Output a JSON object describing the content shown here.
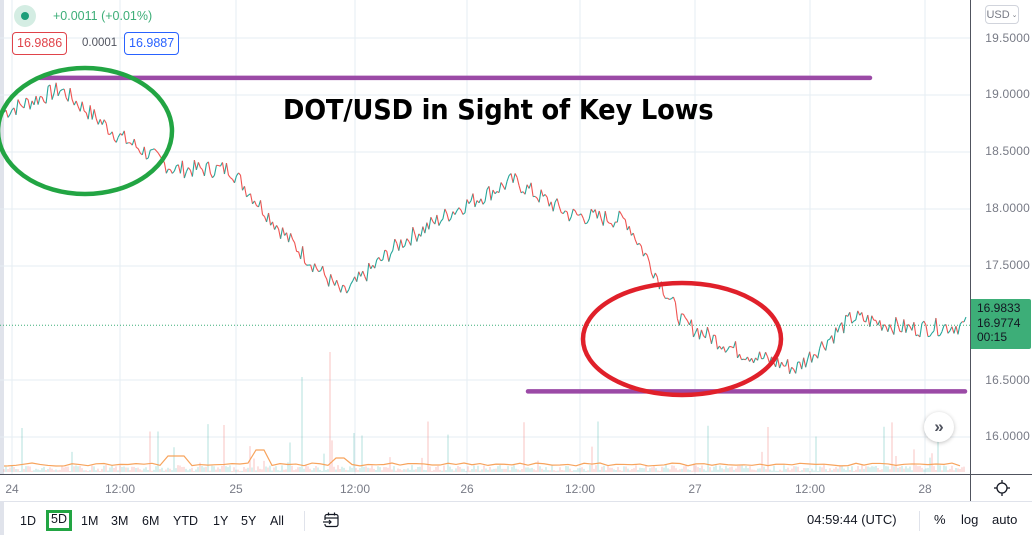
{
  "symbol_legend": {
    "status_icon": "live-dot-icon",
    "change": "+0.0011 (+0.01%)",
    "bid": "16.9886",
    "spread": "0.0001",
    "ask": "16.9887"
  },
  "headline": "DOT/USD in Sight of Key Lows",
  "price_axis": {
    "currency": "USD",
    "currency_chevron": "⌄",
    "labels": [
      "19.5000",
      "19.0000",
      "18.5000",
      "18.0000",
      "17.5000",
      "16.5000",
      "16.0000"
    ],
    "current_price_tag": {
      "price": "16.9833",
      "secondary": "16.9774",
      "countdown": "00:15",
      "color": "#3dae78"
    }
  },
  "time_axis": {
    "labels": [
      "24",
      "12:00",
      "25",
      "12:00",
      "26",
      "12:00",
      "27",
      "12:00",
      "28"
    ],
    "settings_icon": "gear-icon"
  },
  "toolbar": {
    "ranges": [
      "1D",
      "5D",
      "1M",
      "3M",
      "6M",
      "YTD",
      "1Y",
      "5Y",
      "All"
    ],
    "active_range": "5D",
    "goto_date_icon": "calendar-arrow-icon",
    "clock": "04:59:44 (UTC)",
    "percent": "%",
    "log": "log",
    "auto": "auto"
  },
  "scroll_to_realtime_icon": "double-chevron-right-icon",
  "annotations": {
    "resistance_line_color": "#9b4aa6",
    "support_line_color": "#9b4aa6",
    "green_ellipse_color": "#22a543",
    "red_ellipse_color": "#e0202a"
  },
  "colors": {
    "up_candle": "#26a69a",
    "down_candle": "#ef5350",
    "grid": "#e6edf3",
    "volume_ma": "#f7a35c"
  },
  "chart_data": {
    "type": "line",
    "title": "DOT/USD in Sight of Key Lows",
    "xlabel": "",
    "ylabel": "USD",
    "x": [
      "24 00:00",
      "24 06:00",
      "24 12:00",
      "24 18:00",
      "25 00:00",
      "25 06:00",
      "25 12:00",
      "25 18:00",
      "26 00:00",
      "26 06:00",
      "26 12:00",
      "26 18:00",
      "27 00:00",
      "27 06:00",
      "27 12:00",
      "27 18:00",
      "28 00:00",
      "28 04:59"
    ],
    "series": [
      {
        "name": "DOT/USD price (approx.)",
        "values": [
          18.85,
          19.05,
          18.65,
          18.35,
          18.35,
          17.75,
          17.25,
          17.7,
          18.0,
          18.25,
          17.95,
          17.9,
          17.0,
          16.75,
          16.6,
          17.05,
          16.95,
          16.98
        ]
      }
    ],
    "levels": [
      {
        "name": "resistance",
        "value": 19.15
      },
      {
        "name": "support",
        "value": 16.4
      }
    ],
    "ylim": [
      15.75,
      19.7
    ],
    "yticks": [
      16.0,
      16.5,
      17.5,
      18.0,
      18.5,
      19.0,
      19.5
    ],
    "grid": true,
    "legend": "none"
  }
}
